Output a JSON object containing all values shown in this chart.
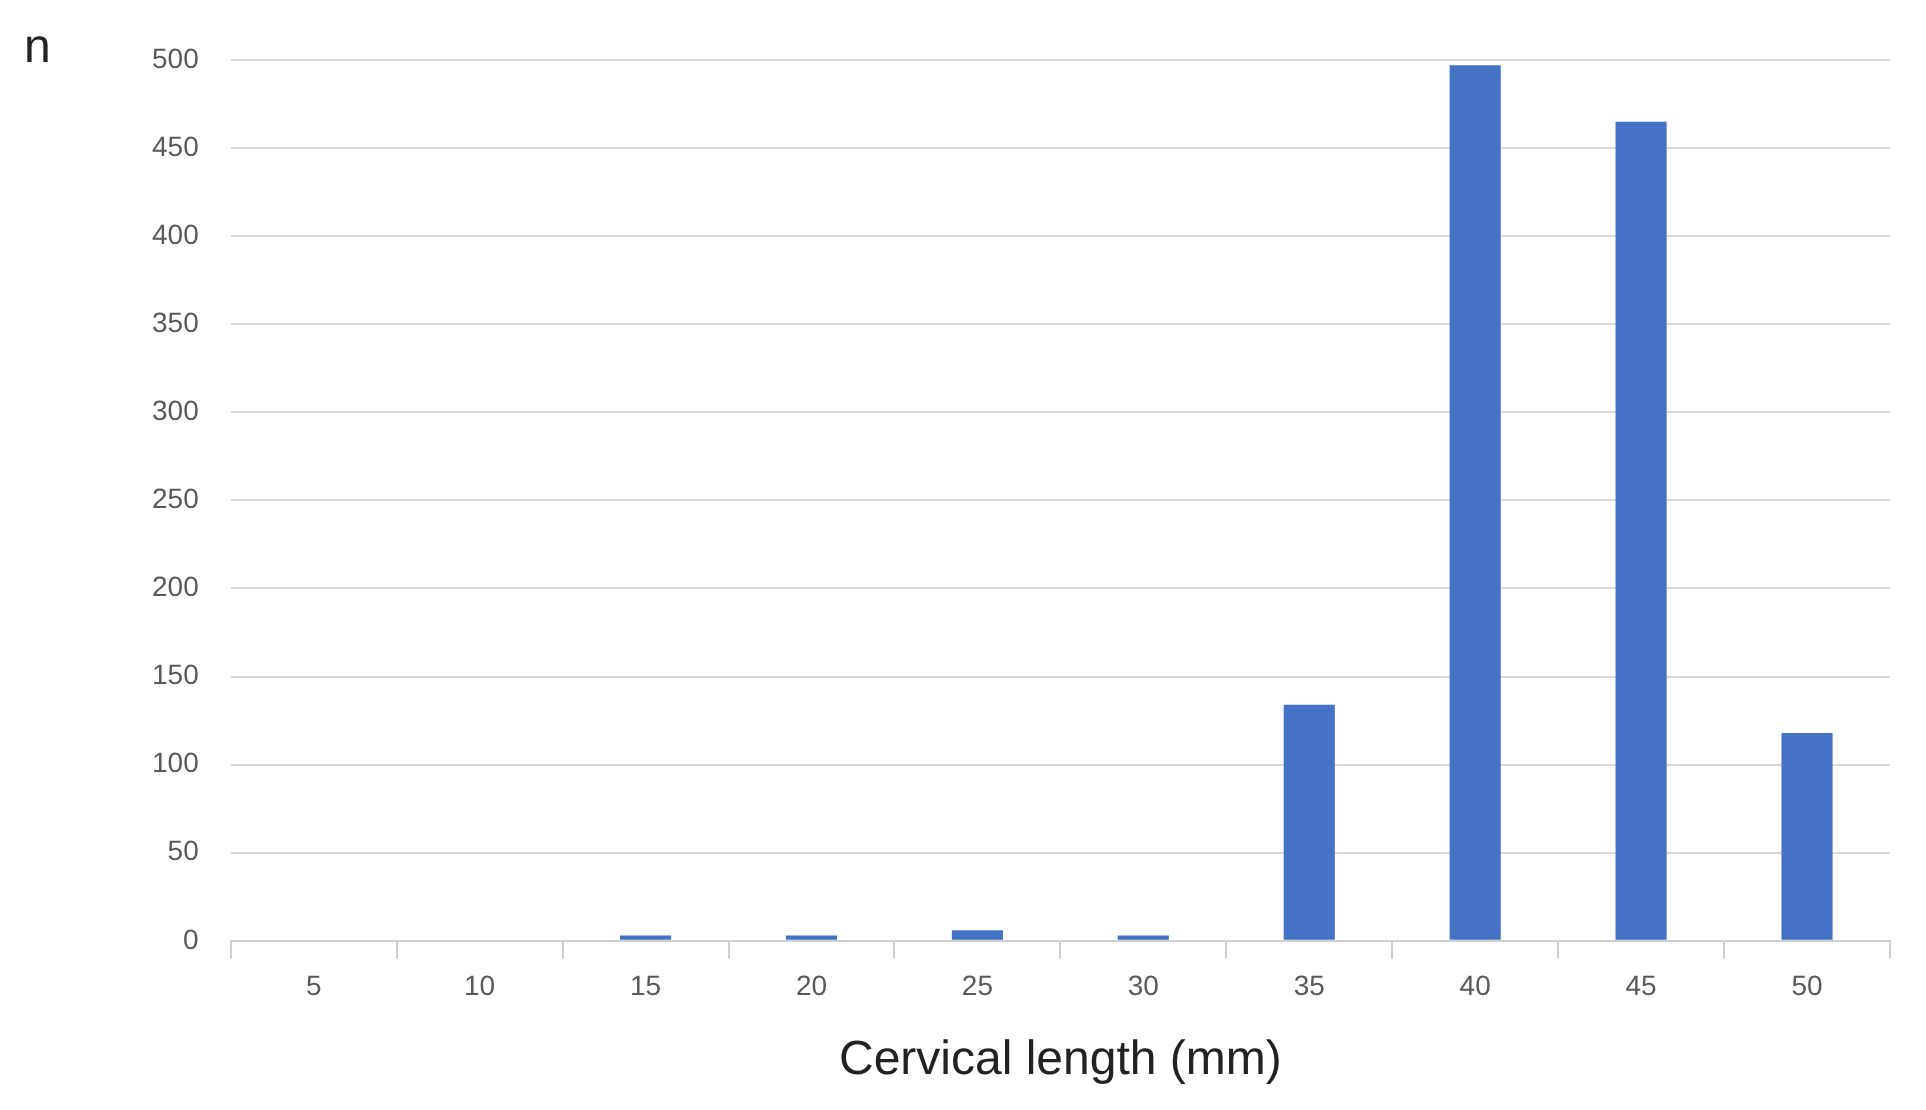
{
  "chart_data": {
    "type": "bar",
    "xlabel": "Cervical length (mm)",
    "ylabel": "n",
    "categories": [
      "5",
      "10",
      "15",
      "20",
      "25",
      "30",
      "35",
      "40",
      "45",
      "50"
    ],
    "values": [
      0,
      0,
      3,
      3,
      6,
      3,
      134,
      497,
      465,
      118
    ],
    "color": "#4472c4",
    "ylim": [
      0,
      500
    ],
    "yticks": [
      0,
      50,
      100,
      150,
      200,
      250,
      300,
      350,
      400,
      450,
      500
    ],
    "grid": "y",
    "legend": false
  }
}
